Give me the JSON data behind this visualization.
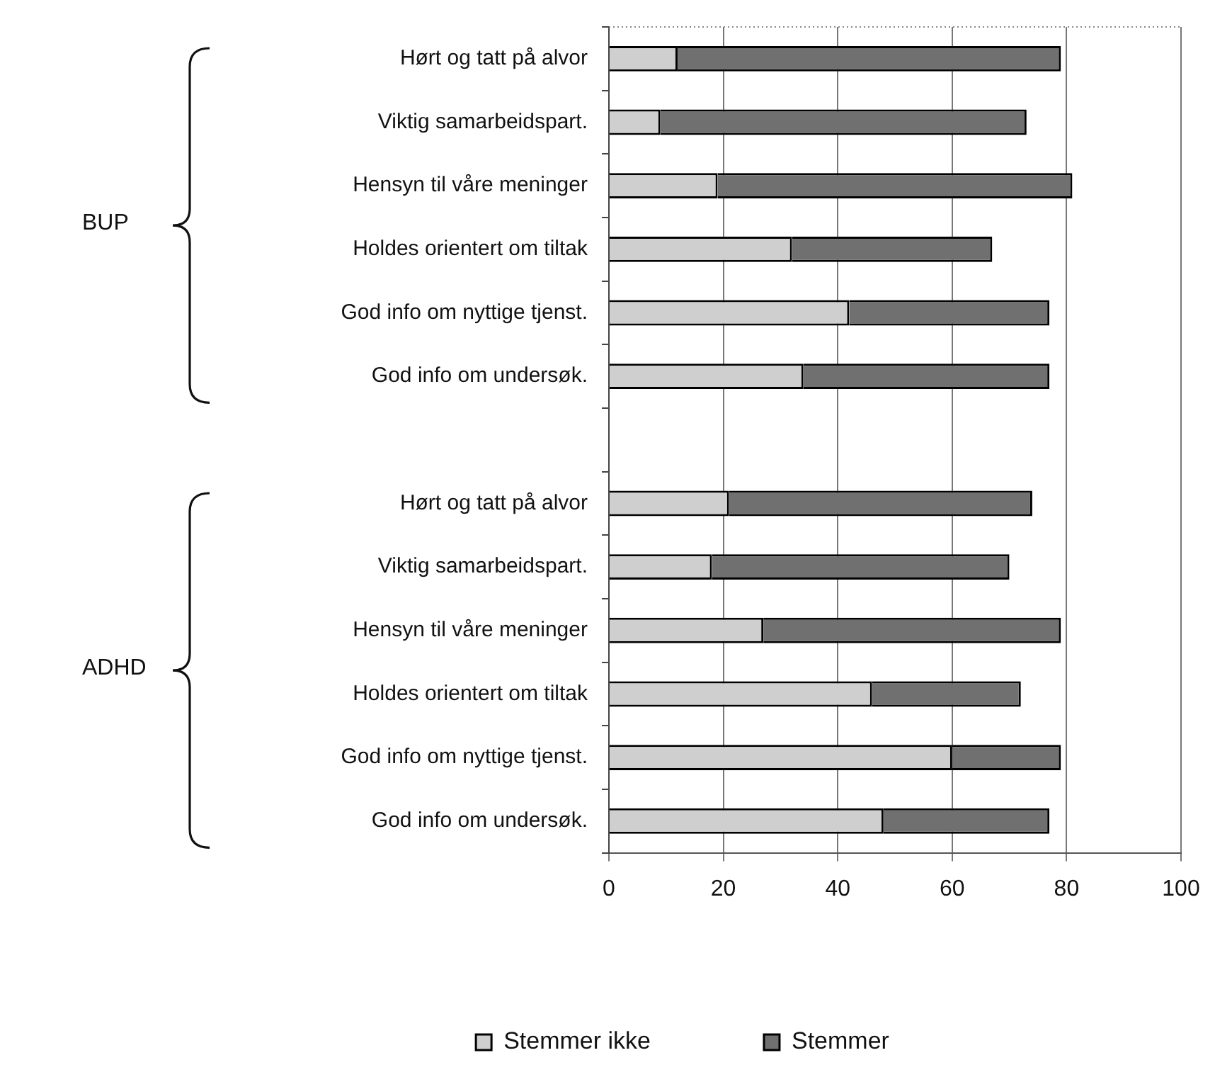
{
  "chart_data": {
    "type": "bar",
    "orientation": "horizontal",
    "stacked": true,
    "categories": [
      "Hørt og tatt på alvor",
      "Viktig samarbeidspart.",
      "Hensyn til våre meninger",
      "Holdes orientert om tiltak",
      "God info om nyttige tjenst.",
      "God info om undersøk.",
      null,
      "Hørt og tatt på alvor",
      "Viktig samarbeidspart.",
      "Hensyn til våre meninger",
      "Holdes orientert om tiltak",
      "God info om nyttige tjenst.",
      "God info om undersøk."
    ],
    "series": [
      {
        "name": "Stemmer ikke",
        "color": "#cfcfcf",
        "values": [
          12,
          9,
          19,
          32,
          42,
          34,
          null,
          21,
          18,
          27,
          46,
          60,
          48
        ]
      },
      {
        "name": "Stemmer",
        "color": "#707070",
        "values": [
          67,
          64,
          62,
          35,
          35,
          43,
          null,
          53,
          52,
          52,
          26,
          19,
          29
        ]
      }
    ],
    "xlim": [
      0,
      100
    ],
    "xticks": [
      0,
      20,
      40,
      60,
      80,
      100
    ],
    "grid": "x",
    "legend": "bottom",
    "annotations": [
      "BUP",
      "ADHD"
    ]
  }
}
